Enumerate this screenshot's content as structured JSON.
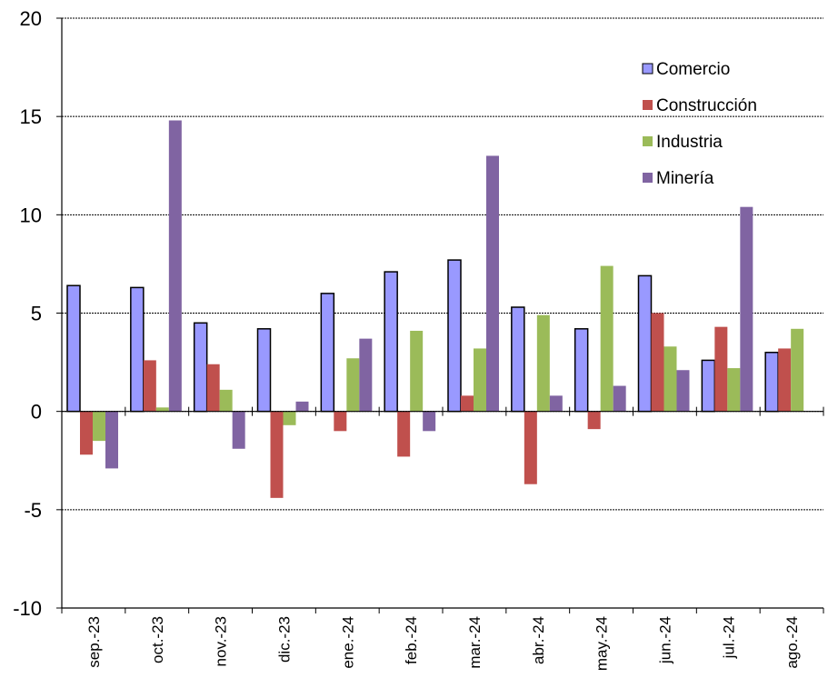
{
  "chart_data": {
    "type": "bar",
    "title": "",
    "xlabel": "",
    "ylabel": "",
    "ylim": [
      -10,
      20
    ],
    "yticks": [
      -10,
      -5,
      0,
      5,
      10,
      15,
      20
    ],
    "grid": true,
    "legend_position": "top-right",
    "categories": [
      "sep.-23",
      "oct.-23",
      "nov.-23",
      "dic.-23",
      "ene.-24",
      "feb.-24",
      "mar.-24",
      "abr.-24",
      "may.-24",
      "jun.-24",
      "jul.-24",
      "ago.-24"
    ],
    "series": [
      {
        "name": "Comercio",
        "color": "#9999ff",
        "outlined": true,
        "values": [
          6.4,
          6.3,
          4.5,
          4.2,
          6.0,
          7.1,
          7.7,
          5.3,
          4.2,
          6.9,
          2.6,
          3.0
        ]
      },
      {
        "name": "Construcción",
        "color": "#c0504d",
        "outlined": false,
        "values": [
          -2.2,
          2.6,
          2.4,
          -4.4,
          -1.0,
          -2.3,
          0.8,
          -3.7,
          -0.9,
          5.0,
          4.3,
          3.2
        ]
      },
      {
        "name": "Industria",
        "color": "#9bbb59",
        "outlined": false,
        "values": [
          -1.5,
          0.2,
          1.1,
          -0.7,
          2.7,
          4.1,
          3.2,
          4.9,
          7.4,
          3.3,
          2.2,
          4.2
        ]
      },
      {
        "name": "Minería",
        "color": "#8064a2",
        "outlined": false,
        "values": [
          -2.9,
          14.8,
          -1.9,
          0.5,
          3.7,
          -1.0,
          13.0,
          0.8,
          1.3,
          2.1,
          10.4,
          null
        ]
      }
    ]
  }
}
